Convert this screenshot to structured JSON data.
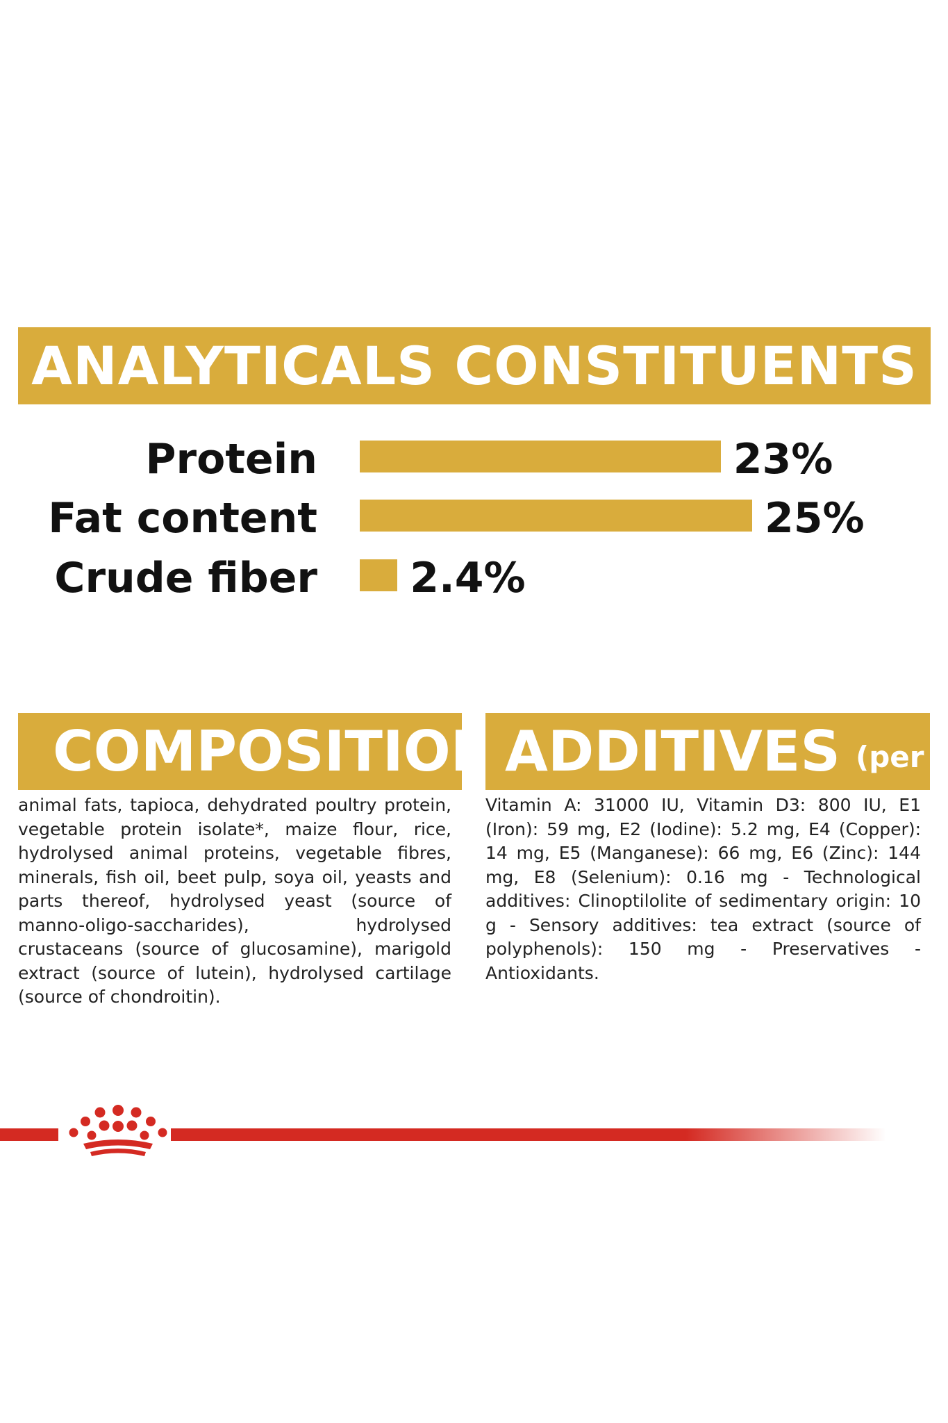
{
  "analytics": {
    "title": "ANALYTICALS CONSTITUENTS",
    "rows": [
      {
        "label": "Protein",
        "value": 23,
        "value_label": "23%"
      },
      {
        "label": "Fat content",
        "value": 25,
        "value_label": "25%"
      },
      {
        "label": "Crude fiber",
        "value": 2.4,
        "value_label": "2.4%"
      }
    ]
  },
  "composition": {
    "title": "COMPOSITION",
    "text": "animal fats, tapioca, dehydrated poultry protein, vegetable protein isolate*, maize flour, rice, hydrolysed animal proteins, vegetable fibres, minerals, fish oil, beet pulp, soya oil, yeasts and parts thereof, hydrolysed yeast (source of manno-oligo-saccharides), hydrolysed crustaceans (source of glucosamine), marigold extract (source of lutein), hydrolysed cartilage (source of chondroitin)."
  },
  "additives": {
    "title": "ADDITIVES",
    "title_suffix": "(per kg)",
    "text": "Vitamin A: 31000 IU, Vitamin D3: 800 IU, E1 (Iron): 59 mg, E2 (Iodine): 5.2 mg, E4 (Copper): 14 mg, E5 (Manganese): 66 mg, E6 (Zinc): 144 mg, E8 (Selenium): 0.16 mg - Technological additives: Clinoptilolite of sedimentary origin: 10 g - Sensory additives: tea extract (source of polyphenols): 150 mg - Preservatives - Antioxidants."
  },
  "colors": {
    "accent": "#d9ac3c",
    "brand_red": "#d42a22",
    "text": "#111111"
  },
  "icons": {
    "logo": "crown-icon"
  }
}
